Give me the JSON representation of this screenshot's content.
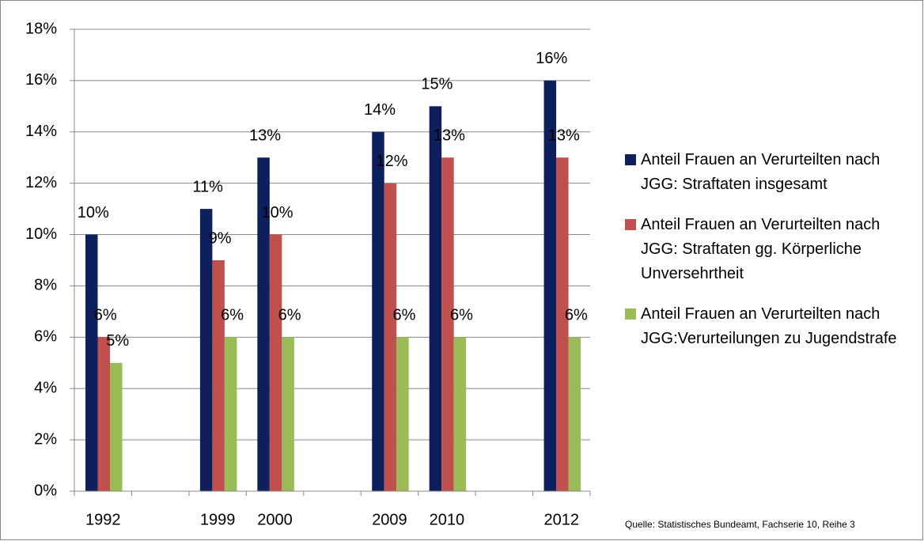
{
  "chart_data": {
    "type": "bar",
    "categories": [
      "1992",
      null,
      "1999",
      "2000",
      null,
      "2009",
      "2010",
      null,
      "2012"
    ],
    "series": [
      {
        "name": "Anteil Frauen an Verurteilten nach JGG: Straftaten insgesamt",
        "color": "#0d1f5c",
        "values": [
          10,
          null,
          11,
          13,
          null,
          14,
          15,
          null,
          16
        ],
        "value_labels": [
          "10%",
          null,
          "11%",
          "13%",
          null,
          "14%",
          "15%",
          null,
          "16%"
        ]
      },
      {
        "name": "Anteil Frauen an Verurteilten nach JGG: Straftaten gg. Körperliche Unversehrtheit",
        "color": "#c0504d",
        "values": [
          6,
          null,
          9,
          10,
          null,
          12,
          13,
          null,
          13
        ],
        "value_labels": [
          "6%",
          null,
          "9%",
          "10%",
          null,
          "12%",
          "13%",
          null,
          "13%"
        ]
      },
      {
        "name": "Anteil Frauen an Verurteilten nach JGG:Verurteilungen zu Jugendstrafe",
        "color": "#9bbb59",
        "values": [
          5,
          null,
          6,
          6,
          null,
          6,
          6,
          null,
          6
        ],
        "value_labels": [
          "5%",
          null,
          "6%",
          "6%",
          null,
          "6%",
          "6%",
          null,
          "6%"
        ]
      }
    ],
    "ylim": [
      0,
      18
    ],
    "yticks": [
      {
        "value": 0,
        "label": "0%"
      },
      {
        "value": 2,
        "label": "2%"
      },
      {
        "value": 4,
        "label": "4%"
      },
      {
        "value": 6,
        "label": "6%"
      },
      {
        "value": 8,
        "label": "8%"
      },
      {
        "value": 10,
        "label": "10%"
      },
      {
        "value": 12,
        "label": "12%"
      },
      {
        "value": 14,
        "label": "14%"
      },
      {
        "value": 16,
        "label": "16%"
      },
      {
        "value": 18,
        "label": "18%"
      }
    ],
    "grid": true,
    "legend": "right",
    "source": "Quelle: Statistisches Bundeamt, Fachserie 10, Reihe 3"
  }
}
